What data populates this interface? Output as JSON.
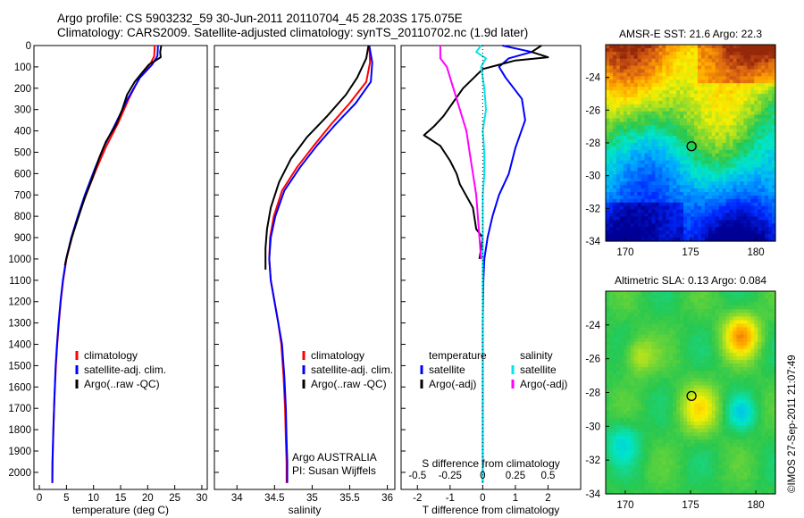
{
  "header": {
    "line1": "Argo profile: CS 5903232_59 30-Jun-2011 20110704_45 28.203S 175.075E",
    "line2": "Climatology: CARS2009. Satellite-adjusted climatology: synTS_20110702.nc (1.9d later)"
  },
  "stamp": "©IMOS 27-Sep-2011 21:07:49",
  "colors": {
    "climatology": "#ff0000",
    "satellite": "#0000ff",
    "argo": "#000000",
    "sal_satellite": "#00e5ee",
    "sal_argo": "#ff00ff"
  },
  "chart_data": [
    {
      "type": "line",
      "xlabel": "temperature (deg C)",
      "xlim": [
        -1,
        31
      ],
      "ylim": [
        2080,
        0
      ],
      "yticks": [
        0,
        100,
        200,
        300,
        400,
        500,
        600,
        700,
        800,
        900,
        1000,
        1100,
        1200,
        1300,
        1400,
        1500,
        1600,
        1700,
        1800,
        1900,
        2000
      ],
      "xticks": [
        0,
        5,
        10,
        15,
        20,
        25,
        30
      ],
      "legend": [
        "climatology",
        "satellite-adj. clim.",
        "Argo(..raw -QC)"
      ],
      "series": [
        {
          "name": "climatology",
          "color": "#ff0000",
          "points": [
            [
              21.3,
              0
            ],
            [
              21.2,
              50
            ],
            [
              20.6,
              80
            ],
            [
              18.5,
              150
            ],
            [
              16.5,
              250
            ],
            [
              14.6,
              360
            ],
            [
              12.2,
              480
            ],
            [
              10.5,
              580
            ],
            [
              8.6,
              700
            ],
            [
              7.2,
              800
            ],
            [
              6,
              900
            ],
            [
              5,
              1000
            ],
            [
              4.4,
              1100
            ],
            [
              3.95,
              1200
            ],
            [
              3.6,
              1300
            ],
            [
              3.3,
              1400
            ],
            [
              3.05,
              1500
            ],
            [
              2.8,
              1650
            ],
            [
              2.6,
              1800
            ],
            [
              2.45,
              1950
            ],
            [
              2.4,
              2050
            ]
          ]
        },
        {
          "name": "satellite-adj. clim.",
          "color": "#0000ff",
          "points": [
            [
              21.9,
              0
            ],
            [
              21.8,
              50
            ],
            [
              20.8,
              90
            ],
            [
              18.6,
              150
            ],
            [
              16.3,
              250
            ],
            [
              14.2,
              360
            ],
            [
              11.8,
              480
            ],
            [
              10.2,
              580
            ],
            [
              8.4,
              700
            ],
            [
              7.1,
              800
            ],
            [
              5.9,
              900
            ],
            [
              4.95,
              1000
            ],
            [
              4.35,
              1100
            ],
            [
              3.9,
              1200
            ],
            [
              3.55,
              1300
            ],
            [
              3.25,
              1400
            ],
            [
              3,
              1500
            ],
            [
              2.78,
              1650
            ],
            [
              2.58,
              1800
            ],
            [
              2.42,
              1950
            ],
            [
              2.38,
              2050
            ]
          ]
        },
        {
          "name": "Argo(..raw -QC)",
          "color": "#000000",
          "points": [
            [
              22.5,
              0
            ],
            [
              22.3,
              30
            ],
            [
              22.4,
              55
            ],
            [
              20.2,
              90
            ],
            [
              19.2,
              120
            ],
            [
              17.6,
              170
            ],
            [
              16.2,
              230
            ],
            [
              15.3,
              300
            ],
            [
              14.2,
              370
            ],
            [
              12.3,
              450
            ],
            [
              11,
              530
            ],
            [
              9.8,
              620
            ],
            [
              8.3,
              720
            ],
            [
              7,
              820
            ],
            [
              6,
              900
            ],
            [
              5.15,
              980
            ],
            [
              4.7,
              1030
            ]
          ]
        }
      ]
    },
    {
      "type": "line",
      "xlabel": "salinity",
      "xlim": [
        33.7,
        36.1
      ],
      "ylim": [
        2080,
        0
      ],
      "xticks": [
        34,
        34.5,
        35,
        35.5,
        36
      ],
      "legend": [
        "climatology",
        "satellite-adj. clim.",
        "Argo(..raw -QC)"
      ],
      "annotations": [
        "Argo AUSTRALIA",
        "PI: Susan Wijffels"
      ],
      "series": [
        {
          "name": "climatology",
          "color": "#ff0000",
          "points": [
            [
              35.76,
              0
            ],
            [
              35.77,
              80
            ],
            [
              35.72,
              170
            ],
            [
              35.5,
              270
            ],
            [
              35.25,
              370
            ],
            [
              35.02,
              470
            ],
            [
              34.8,
              570
            ],
            [
              34.6,
              680
            ],
            [
              34.49,
              800
            ],
            [
              34.44,
              900
            ],
            [
              34.43,
              1000
            ],
            [
              34.45,
              1100
            ],
            [
              34.5,
              1200
            ],
            [
              34.55,
              1300
            ],
            [
              34.59,
              1400
            ],
            [
              34.62,
              1550
            ],
            [
              34.64,
              1700
            ],
            [
              34.65,
              1850
            ],
            [
              34.66,
              1950
            ],
            [
              34.66,
              2050
            ]
          ]
        },
        {
          "name": "satellite-adj. clim.",
          "color": "#0000ff",
          "points": [
            [
              35.76,
              0
            ],
            [
              35.8,
              80
            ],
            [
              35.78,
              170
            ],
            [
              35.58,
              270
            ],
            [
              35.31,
              370
            ],
            [
              35.06,
              470
            ],
            [
              34.84,
              570
            ],
            [
              34.63,
              680
            ],
            [
              34.51,
              800
            ],
            [
              34.45,
              900
            ],
            [
              34.43,
              1000
            ],
            [
              34.45,
              1100
            ],
            [
              34.5,
              1200
            ],
            [
              34.55,
              1300
            ],
            [
              34.6,
              1400
            ],
            [
              34.63,
              1550
            ],
            [
              34.65,
              1700
            ],
            [
              34.66,
              1850
            ],
            [
              34.67,
              1950
            ],
            [
              34.67,
              2050
            ]
          ]
        },
        {
          "name": "Argo(..raw -QC)",
          "color": "#000000",
          "points": [
            [
              35.75,
              0
            ],
            [
              35.72,
              60
            ],
            [
              35.6,
              150
            ],
            [
              35.45,
              230
            ],
            [
              35.2,
              330
            ],
            [
              34.93,
              430
            ],
            [
              34.72,
              530
            ],
            [
              34.56,
              640
            ],
            [
              34.45,
              760
            ],
            [
              34.4,
              860
            ],
            [
              34.38,
              950
            ],
            [
              34.38,
              1050
            ]
          ]
        }
      ]
    },
    {
      "type": "line",
      "xlabel": "T difference from climatology",
      "top_axis_label": "S difference from climatology",
      "xlim": [
        -2.5,
        3
      ],
      "ylim": [
        2080,
        0
      ],
      "xticks": [
        -2,
        -1,
        0,
        1,
        2
      ],
      "top_ticks": [
        {
          "v": -0.5,
          "label": "-0.5"
        },
        {
          "v": -0.25,
          "label": "-0.25"
        },
        {
          "v": 0,
          "label": "0"
        },
        {
          "v": 0.25,
          "label": "0.25"
        },
        {
          "v": 0.5,
          "label": "0.5"
        }
      ],
      "legend_temperature": {
        "title": "temperature",
        "items": [
          "satellite",
          "Argo(-adj)"
        ]
      },
      "legend_salinity": {
        "title": "salinity",
        "items": [
          "satellite",
          "Argo(-adj)"
        ]
      },
      "series": [
        {
          "name": "satellite",
          "group": "temperature",
          "color": "#0000ff",
          "points": [
            [
              0.6,
              0
            ],
            [
              1.5,
              30
            ],
            [
              0.8,
              60
            ],
            [
              0.5,
              100
            ],
            [
              0.7,
              150
            ],
            [
              1.2,
              250
            ],
            [
              1.3,
              350
            ],
            [
              1.0,
              480
            ],
            [
              0.8,
              600
            ],
            [
              0.5,
              700
            ],
            [
              0.3,
              800
            ],
            [
              0.15,
              900
            ],
            [
              0.05,
              1000
            ],
            [
              0.02,
              1100
            ],
            [
              0,
              1300
            ],
            [
              0,
              2050
            ]
          ]
        },
        {
          "name": "Argo(-adj)",
          "group": "temperature",
          "color": "#000000",
          "points": [
            [
              1.8,
              0
            ],
            [
              1.5,
              30
            ],
            [
              2.0,
              55
            ],
            [
              1.0,
              70
            ],
            [
              0.5,
              90
            ],
            [
              0,
              110
            ],
            [
              -0.6,
              200
            ],
            [
              -1.2,
              330
            ],
            [
              -1.5,
              380
            ],
            [
              -1.8,
              420
            ],
            [
              -1.3,
              470
            ],
            [
              -1.0,
              540
            ],
            [
              -0.8,
              600
            ],
            [
              -0.7,
              650
            ],
            [
              -0.3,
              760
            ],
            [
              -0.2,
              860
            ],
            [
              0,
              900
            ],
            [
              -0.1,
              1000
            ]
          ]
        },
        {
          "name": "satellite",
          "group": "salinity",
          "color": "#00e5ee",
          "points": [
            [
              -0.05,
              0
            ],
            [
              -0.2,
              30
            ],
            [
              0.1,
              60
            ],
            [
              -0.05,
              100
            ],
            [
              0.05,
              200
            ],
            [
              0.1,
              300
            ],
            [
              0,
              400
            ],
            [
              0.05,
              500
            ],
            [
              0.05,
              600
            ],
            [
              0,
              700
            ],
            [
              0,
              800
            ],
            [
              0,
              1000
            ],
            [
              0,
              1200
            ],
            [
              0,
              2050
            ]
          ]
        },
        {
          "name": "Argo(-adj)",
          "group": "salinity",
          "color": "#ff00ff",
          "points": [
            [
              -1.3,
              0
            ],
            [
              -1.3,
              60
            ],
            [
              -1.1,
              100
            ],
            [
              -0.9,
              200
            ],
            [
              -0.7,
              300
            ],
            [
              -0.5,
              400
            ],
            [
              -0.4,
              500
            ],
            [
              -0.3,
              600
            ],
            [
              -0.2,
              700
            ],
            [
              -0.15,
              800
            ],
            [
              -0.1,
              900
            ],
            [
              -0.05,
              1000
            ]
          ]
        }
      ]
    },
    {
      "type": "heatmap",
      "title": "AMSR-E SST: 21.6 Argo: 22.3",
      "xlim": [
        168.5,
        181.5
      ],
      "ylim": [
        -34,
        -22
      ],
      "xticks": [
        170,
        175,
        180
      ],
      "yticks": [
        -24,
        -26,
        -28,
        -30,
        -32,
        -34
      ],
      "marker": [
        175.075,
        -28.203
      ]
    },
    {
      "type": "heatmap",
      "title": "Altimetric SLA: 0.13 Argo: 0.084",
      "xlim": [
        168.5,
        181.5
      ],
      "ylim": [
        -34,
        -22
      ],
      "xticks": [
        170,
        175,
        180
      ],
      "yticks": [
        -24,
        -26,
        -28,
        -30,
        -32,
        -34
      ],
      "marker": [
        175.075,
        -28.203
      ]
    }
  ]
}
